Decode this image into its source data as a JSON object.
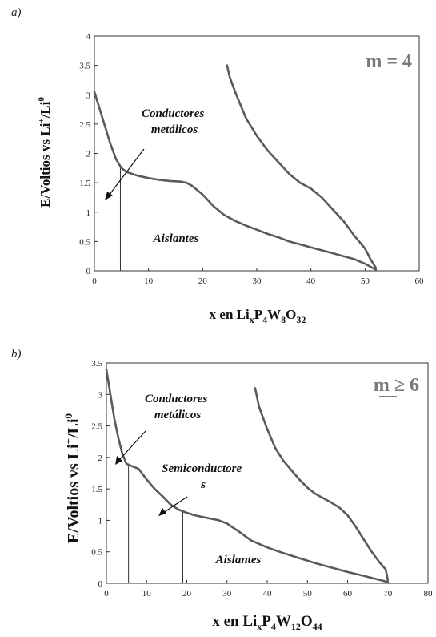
{
  "chart_data": [
    {
      "type": "line",
      "panel_label": "a)",
      "m_label": "m = 4",
      "xlim": [
        0,
        60
      ],
      "ylim": [
        0,
        4
      ],
      "xticks": [
        "0",
        "10",
        "20",
        "30",
        "40",
        "50",
        "60"
      ],
      "yticks": [
        "0",
        "0.5",
        "1",
        "1.5",
        "2",
        "2.5",
        "3",
        "3.5",
        "4"
      ],
      "ylabel": {
        "main": "E/Voltios vs Li",
        "sup1": "+",
        "mid": "/Li",
        "sup2": "0"
      },
      "xlabel": [
        {
          "t": "x en Li",
          "s": "n"
        },
        {
          "t": "x",
          "s": "sub"
        },
        {
          "t": "P",
          "s": "n"
        },
        {
          "t": "4",
          "s": "sub"
        },
        {
          "t": "W",
          "s": "n"
        },
        {
          "t": "8",
          "s": "sub"
        },
        {
          "t": "O",
          "s": "n"
        },
        {
          "t": "32",
          "s": "sub"
        }
      ],
      "annotations": [
        {
          "lines": [
            "Conductores",
            "metálicos"
          ]
        },
        {
          "lines": [
            "Aislantes"
          ]
        }
      ],
      "boundaries_x": [
        4.8
      ],
      "series": [
        {
          "values": [
            [
              0,
              3.05
            ],
            [
              1,
              2.75
            ],
            [
              2,
              2.45
            ],
            [
              3,
              2.15
            ],
            [
              4,
              1.9
            ],
            [
              5,
              1.75
            ],
            [
              6,
              1.68
            ],
            [
              8,
              1.62
            ],
            [
              10,
              1.58
            ],
            [
              12,
              1.55
            ],
            [
              14,
              1.53
            ],
            [
              16,
              1.52
            ],
            [
              17,
              1.5
            ],
            [
              18,
              1.45
            ],
            [
              20,
              1.3
            ],
            [
              22,
              1.1
            ],
            [
              24,
              0.95
            ],
            [
              26,
              0.85
            ],
            [
              28,
              0.77
            ],
            [
              30,
              0.7
            ],
            [
              32,
              0.63
            ],
            [
              34,
              0.57
            ],
            [
              36,
              0.5
            ],
            [
              38,
              0.45
            ],
            [
              40,
              0.4
            ],
            [
              42,
              0.35
            ],
            [
              44,
              0.3
            ],
            [
              46,
              0.25
            ],
            [
              48,
              0.2
            ],
            [
              50,
              0.12
            ],
            [
              51,
              0.07
            ],
            [
              52,
              0.02
            ]
          ]
        },
        {
          "values": [
            [
              24.5,
              3.5
            ],
            [
              25,
              3.3
            ],
            [
              26,
              3.05
            ],
            [
              28,
              2.6
            ],
            [
              30,
              2.3
            ],
            [
              32,
              2.05
            ],
            [
              34,
              1.85
            ],
            [
              36,
              1.65
            ],
            [
              38,
              1.5
            ],
            [
              40,
              1.4
            ],
            [
              42,
              1.25
            ],
            [
              44,
              1.05
            ],
            [
              46,
              0.85
            ],
            [
              48,
              0.6
            ],
            [
              50,
              0.38
            ],
            [
              51,
              0.2
            ],
            [
              52,
              0.05
            ]
          ]
        }
      ]
    },
    {
      "type": "line",
      "panel_label": "b)",
      "m_label": "m ≥ 6",
      "xlim": [
        0,
        80
      ],
      "ylim": [
        0,
        3.5
      ],
      "xticks": [
        "0",
        "10",
        "20",
        "30",
        "40",
        "50",
        "60",
        "70",
        "80"
      ],
      "yticks": [
        "0",
        "0.5",
        "1",
        "1.5",
        "2",
        "2.5",
        "3",
        "3.5"
      ],
      "ylabel": {
        "main": "E/Voltios vs Li",
        "sup1": "+",
        "mid": "/Li",
        "sup2": "0"
      },
      "xlabel": [
        {
          "t": "x en Li",
          "s": "n"
        },
        {
          "t": "x",
          "s": "sub"
        },
        {
          "t": "P",
          "s": "n"
        },
        {
          "t": "4",
          "s": "sub"
        },
        {
          "t": "W",
          "s": "n"
        },
        {
          "t": "12",
          "s": "sub"
        },
        {
          "t": "O",
          "s": "n"
        },
        {
          "t": "44",
          "s": "sub"
        }
      ],
      "annotations": [
        {
          "lines": [
            "Conductores",
            "metálicos"
          ]
        },
        {
          "lines": [
            "Semiconductore",
            "s"
          ]
        },
        {
          "lines": [
            "Aislantes"
          ]
        }
      ],
      "boundaries_x": [
        5.5,
        19
      ],
      "series": [
        {
          "values": [
            [
              0,
              3.4
            ],
            [
              1,
              3.0
            ],
            [
              2,
              2.6
            ],
            [
              3,
              2.3
            ],
            [
              4,
              2.05
            ],
            [
              5,
              1.9
            ],
            [
              6,
              1.87
            ],
            [
              8,
              1.82
            ],
            [
              10,
              1.65
            ],
            [
              12,
              1.5
            ],
            [
              14,
              1.38
            ],
            [
              16,
              1.25
            ],
            [
              18,
              1.17
            ],
            [
              20,
              1.12
            ],
            [
              22,
              1.08
            ],
            [
              25,
              1.04
            ],
            [
              28,
              1.0
            ],
            [
              30,
              0.95
            ],
            [
              33,
              0.82
            ],
            [
              36,
              0.68
            ],
            [
              40,
              0.57
            ],
            [
              44,
              0.48
            ],
            [
              48,
              0.4
            ],
            [
              52,
              0.32
            ],
            [
              56,
              0.25
            ],
            [
              60,
              0.18
            ],
            [
              64,
              0.12
            ],
            [
              67,
              0.07
            ],
            [
              70,
              0.02
            ]
          ]
        },
        {
          "values": [
            [
              37,
              3.1
            ],
            [
              38,
              2.8
            ],
            [
              40,
              2.45
            ],
            [
              42,
              2.15
            ],
            [
              44,
              1.95
            ],
            [
              46,
              1.8
            ],
            [
              48,
              1.65
            ],
            [
              50,
              1.52
            ],
            [
              52,
              1.42
            ],
            [
              54,
              1.35
            ],
            [
              56,
              1.28
            ],
            [
              58,
              1.2
            ],
            [
              60,
              1.08
            ],
            [
              62,
              0.9
            ],
            [
              64,
              0.7
            ],
            [
              66,
              0.5
            ],
            [
              68,
              0.33
            ],
            [
              69.5,
              0.22
            ],
            [
              70,
              0.05
            ]
          ]
        }
      ]
    }
  ]
}
